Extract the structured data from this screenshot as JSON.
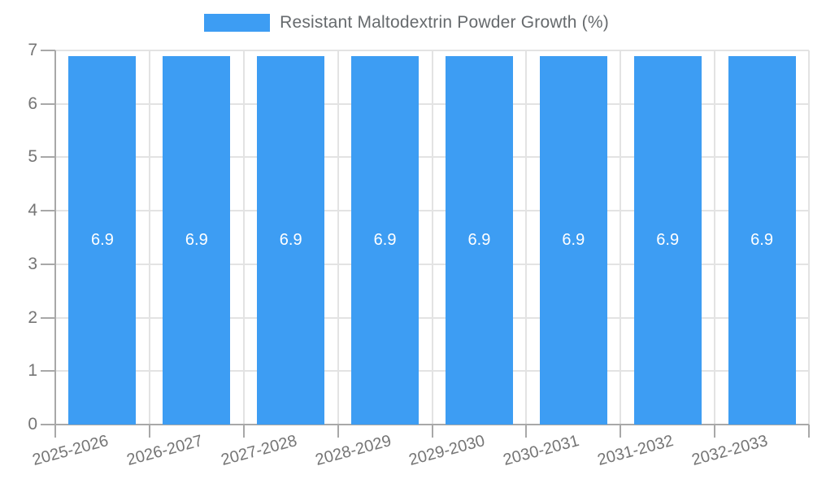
{
  "chart_data": {
    "type": "bar",
    "title": "Resistant Maltodextrin Powder Growth (%)",
    "categories": [
      "2025-2026",
      "2026-2027",
      "2027-2028",
      "2028-2029",
      "2029-2030",
      "2030-2031",
      "2031-2032",
      "2032-2033"
    ],
    "series": [
      {
        "name": "Resistant Maltodextrin Powder Growth (%)",
        "values": [
          6.9,
          6.9,
          6.9,
          6.9,
          6.9,
          6.9,
          6.9,
          6.9
        ]
      }
    ],
    "value_labels": [
      "6.9",
      "6.9",
      "6.9",
      "6.9",
      "6.9",
      "6.9",
      "6.9",
      "6.9"
    ],
    "xlabel": "",
    "ylabel": "",
    "ylim": [
      0,
      7
    ],
    "yticks": [
      0,
      1,
      2,
      3,
      4,
      5,
      6,
      7
    ],
    "grid": true,
    "legend_position": "top"
  },
  "colors": {
    "bar": "#3D9DF3",
    "grid": "#E3E3E3",
    "axis": "#A8A8A8",
    "tick_text": "#757575",
    "title_text": "#666A6D",
    "value_text": "#FFFFFF"
  }
}
